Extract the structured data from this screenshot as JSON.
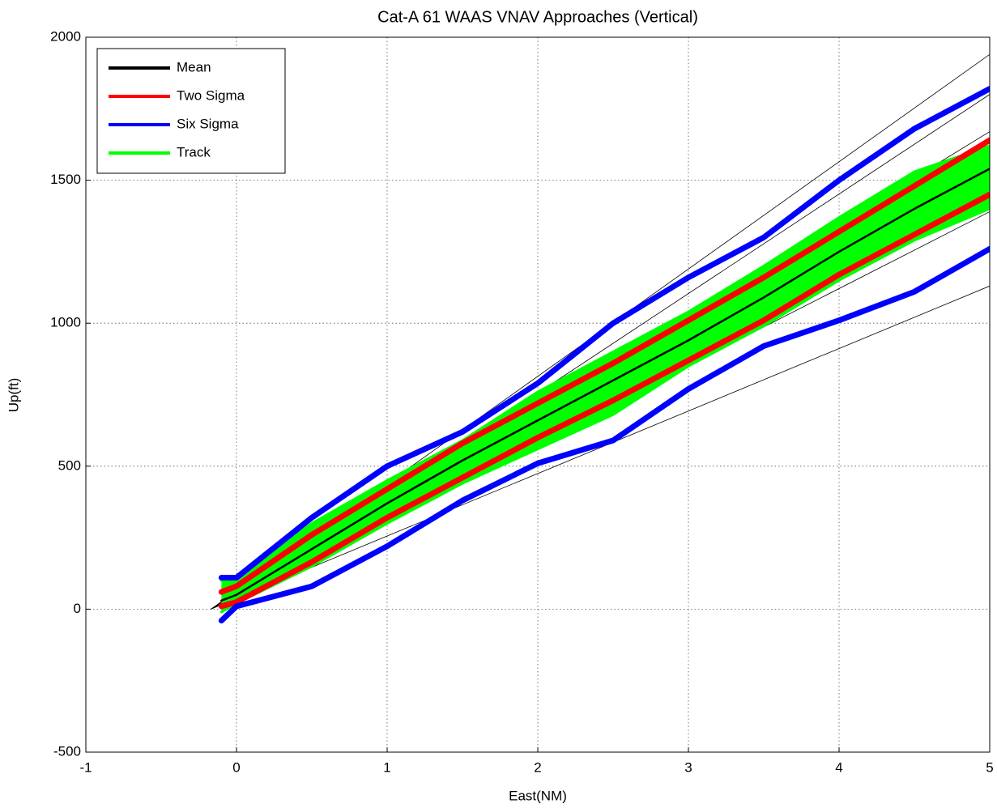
{
  "chart_data": {
    "type": "line",
    "title": "Cat-A 61 WAAS VNAV Approaches (Vertical)",
    "xlabel": "East(NM)",
    "ylabel": "Up(ft)",
    "xlim": [
      -1,
      5
    ],
    "ylim": [
      -500,
      2000
    ],
    "xticks": [
      -1,
      0,
      1,
      2,
      3,
      4,
      5
    ],
    "yticks": [
      -500,
      0,
      500,
      1000,
      1500,
      2000
    ],
    "grid": true,
    "legend": "upper left",
    "x": [
      -0.1,
      0,
      0.5,
      1,
      1.5,
      2,
      2.5,
      3,
      3.5,
      4,
      4.5,
      5
    ],
    "series": [
      {
        "name": "Track",
        "color": "#00ff00",
        "fill": true,
        "values": [
          100,
          110,
          300,
          450,
          590,
          760,
          900,
          1040,
          1200,
          1370,
          1530,
          1620
        ],
        "lower": [
          -10,
          20,
          150,
          300,
          440,
          560,
          680,
          850,
          990,
          1150,
          1290,
          1400
        ]
      },
      {
        "name": "Two Sigma",
        "color": "#ff0000",
        "values": [
          60,
          80,
          260,
          420,
          580,
          720,
          860,
          1010,
          1160,
          1320,
          1480,
          1640
        ],
        "lower": [
          10,
          25,
          165,
          320,
          460,
          600,
          730,
          870,
          1010,
          1170,
          1310,
          1450
        ]
      },
      {
        "name": "Six Sigma",
        "color": "#0000ff",
        "values": [
          110,
          110,
          320,
          500,
          620,
          790,
          1000,
          1160,
          1300,
          1500,
          1680,
          1820
        ],
        "lower": [
          -40,
          10,
          80,
          220,
          380,
          510,
          590,
          770,
          920,
          1010,
          1110,
          1260
        ]
      },
      {
        "name": "Mean",
        "color": "#000000",
        "values": [
          30,
          50,
          210,
          370,
          520,
          660,
          800,
          940,
          1090,
          1250,
          1400,
          1540
        ]
      }
    ],
    "legend_order": [
      3,
      1,
      2,
      0
    ],
    "reference_lines": {
      "color": "#000000",
      "x": [
        -0.17,
        5
      ],
      "ends": [
        1940,
        1800,
        1670,
        1390,
        1130
      ],
      "start": 0
    }
  }
}
